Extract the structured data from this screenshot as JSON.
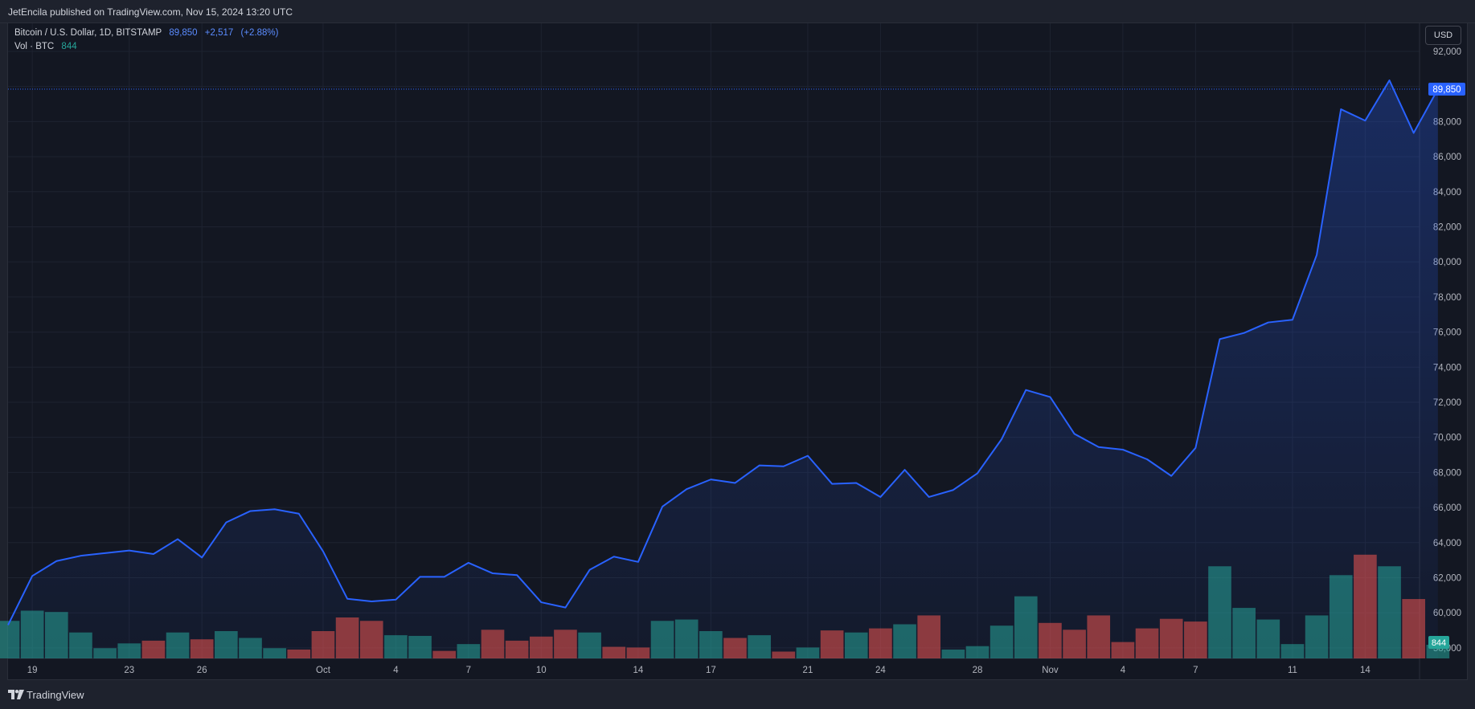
{
  "header": {
    "published": "JetEncila published on TradingView.com, Nov 15, 2024 13:20 UTC"
  },
  "legend": {
    "symbol": "Bitcoin / U.S. Dollar, 1D, BITSTAMP",
    "last": "89,850",
    "change": "+2,517",
    "change_pct": "(+2.88%)",
    "volume_label": "Vol · BTC",
    "volume_value": "844"
  },
  "currency_button": "USD",
  "price_label": "89,850",
  "volume_label_tag": "844",
  "footer": {
    "brand": "TradingView"
  },
  "colors": {
    "line": "#2962ff",
    "area": "#2962ff",
    "vol_up": "#26a69a",
    "vol_down": "#ef5350",
    "grid": "#1e2330",
    "background": "#131722"
  },
  "chart_data": {
    "type": "area",
    "y_axis_ticks": [
      "92,000",
      "90,000",
      "88,000",
      "86,000",
      "84,000",
      "82,000",
      "80,000",
      "78,000",
      "76,000",
      "74,000",
      "72,000",
      "70,000",
      "68,000",
      "66,000",
      "64,000",
      "62,000",
      "60,000",
      "58,000"
    ],
    "ylim": [
      57400,
      93600
    ],
    "x_tick_labels": [
      "19",
      "23",
      "26",
      "Oct",
      "4",
      "7",
      "10",
      "14",
      "17",
      "21",
      "24",
      "28",
      "Nov",
      "4",
      "7",
      "11",
      "14"
    ],
    "x_tick_index": [
      1,
      5,
      8,
      13,
      16,
      19,
      22,
      26,
      29,
      33,
      36,
      40,
      43,
      46,
      49,
      53,
      56
    ],
    "close": [
      59300,
      62100,
      62950,
      63250,
      63400,
      63550,
      63350,
      64200,
      63150,
      65150,
      65800,
      65900,
      65650,
      63500,
      60800,
      60650,
      60750,
      62050,
      62050,
      62850,
      62250,
      62150,
      60600,
      60300,
      62450,
      63200,
      62900,
      66050,
      67050,
      67600,
      67400,
      68400,
      68350,
      68950,
      67350,
      67400,
      66600,
      68150,
      66600,
      67000,
      67950,
      69900,
      72700,
      72300,
      70200,
      69450,
      69300,
      68750,
      67800,
      69400,
      75600,
      75950,
      76550,
      76700,
      80400,
      88700,
      88050,
      90350,
      87350,
      89850
    ],
    "volume_up": [
      true,
      true,
      true,
      true,
      true,
      true,
      false,
      true,
      false,
      true,
      true,
      true,
      false,
      false,
      false,
      false,
      true,
      true,
      false,
      true,
      false,
      false,
      false,
      false,
      true,
      false,
      false,
      true,
      true,
      true,
      false,
      true,
      false,
      true,
      false,
      true,
      false,
      true,
      false,
      true,
      true,
      true,
      true,
      false,
      false,
      false,
      false,
      false,
      false,
      false,
      true,
      true,
      true,
      true,
      true,
      true,
      false,
      true,
      false,
      true
    ],
    "volume_rel": [
      0.55,
      0.7,
      0.68,
      0.38,
      0.15,
      0.22,
      0.26,
      0.38,
      0.28,
      0.4,
      0.3,
      0.15,
      0.13,
      0.4,
      0.6,
      0.55,
      0.34,
      0.33,
      0.11,
      0.21,
      0.42,
      0.26,
      0.32,
      0.42,
      0.38,
      0.17,
      0.16,
      0.55,
      0.57,
      0.4,
      0.3,
      0.34,
      0.1,
      0.16,
      0.41,
      0.38,
      0.44,
      0.5,
      0.63,
      0.13,
      0.18,
      0.48,
      0.91,
      0.52,
      0.42,
      0.63,
      0.24,
      0.44,
      0.58,
      0.54,
      1.35,
      0.74,
      0.57,
      0.21,
      0.63,
      1.22,
      1.52,
      1.35,
      0.87,
      0.2
    ],
    "volume_last": 844
  }
}
